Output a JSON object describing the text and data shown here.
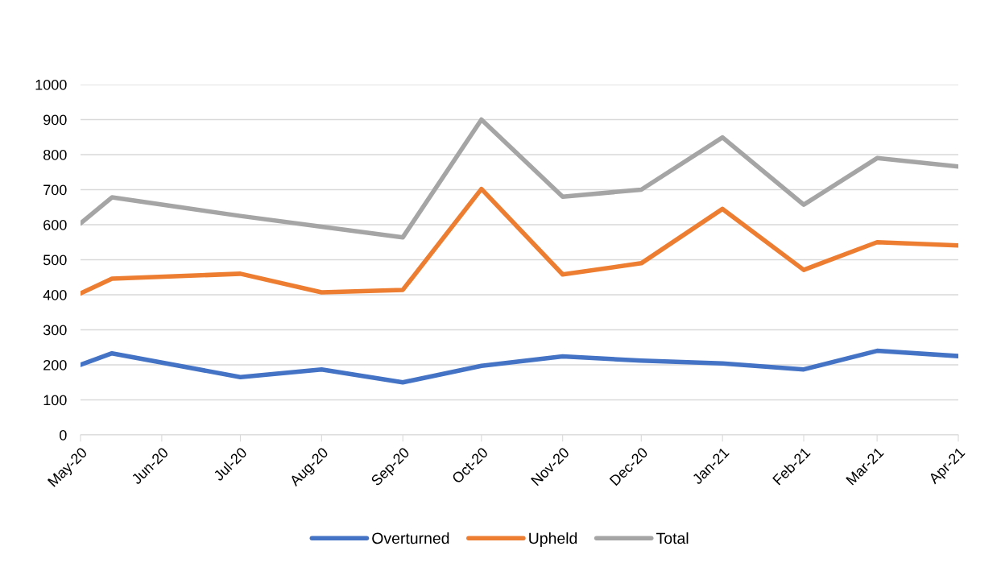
{
  "chart_data": {
    "type": "line",
    "x": [
      "2020-05-01",
      "2020-05-13",
      "2020-07-01",
      "2020-08-01",
      "2020-09-01",
      "2020-10-01",
      "2020-11-01",
      "2020-12-01",
      "2021-01-01",
      "2021-02-01",
      "2021-03-01",
      "2021-04-01"
    ],
    "series": [
      {
        "name": "Overturned",
        "color": "#4472c4",
        "values": [
          200,
          233,
          165,
          187,
          150,
          197,
          224,
          212,
          204,
          187,
          240,
          225
        ]
      },
      {
        "name": "Upheld",
        "color": "#ed7d31",
        "values": [
          404,
          446,
          460,
          407,
          414,
          702,
          458,
          490,
          645,
          471,
          550,
          541
        ]
      },
      {
        "name": "Total",
        "color": "#a5a5a5",
        "values": [
          604,
          678,
          625,
          594,
          564,
          900,
          680,
          700,
          849,
          657,
          790,
          766
        ]
      }
    ],
    "xlim": [
      "2020-05-01",
      "2021-04-01"
    ],
    "xticks": [
      {
        "value": "2020-05-01",
        "label": "May-20"
      },
      {
        "value": "2020-06-01",
        "label": "Jun-20"
      },
      {
        "value": "2020-07-01",
        "label": "Jul-20"
      },
      {
        "value": "2020-08-01",
        "label": "Aug-20"
      },
      {
        "value": "2020-09-01",
        "label": "Sep-20"
      },
      {
        "value": "2020-10-01",
        "label": "Oct-20"
      },
      {
        "value": "2020-11-01",
        "label": "Nov-20"
      },
      {
        "value": "2020-12-01",
        "label": "Dec-20"
      },
      {
        "value": "2021-01-01",
        "label": "Jan-21"
      },
      {
        "value": "2021-02-01",
        "label": "Feb-21"
      },
      {
        "value": "2021-03-01",
        "label": "Mar-21"
      },
      {
        "value": "2021-04-01",
        "label": "Apr-21"
      }
    ],
    "ylim": [
      0,
      1000
    ],
    "yticks": [
      0,
      100,
      200,
      300,
      400,
      500,
      600,
      700,
      800,
      900,
      1000
    ],
    "grid": "y",
    "legend": "bottom",
    "marker": "none",
    "line_style": "solid"
  }
}
